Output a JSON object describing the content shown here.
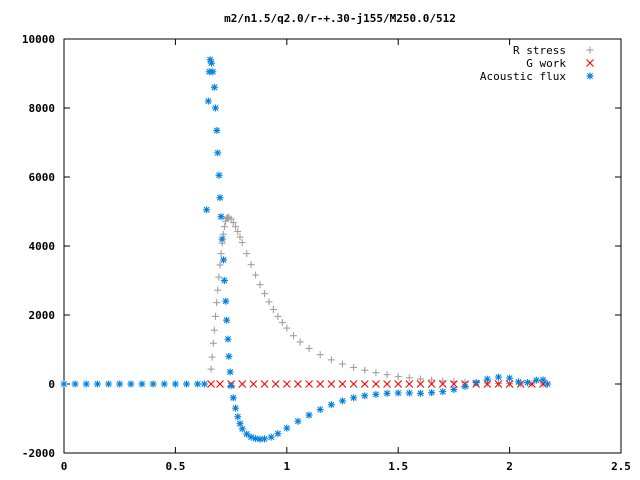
{
  "chart_data": {
    "type": "scatter",
    "title": "m2/n1.5/q2.0/r-+.30-j155/M250.0/512",
    "xlabel": "",
    "ylabel": "",
    "xlim": [
      0,
      2.5
    ],
    "ylim": [
      -2000,
      10000
    ],
    "x_ticks": [
      0,
      0.5,
      1,
      1.5,
      2,
      2.5
    ],
    "y_ticks": [
      -2000,
      0,
      2000,
      4000,
      6000,
      8000,
      10000
    ],
    "x_tick_labels": [
      "0",
      "0.5",
      "1",
      "1.5",
      "2",
      "2.5"
    ],
    "y_tick_labels": [
      "-2000",
      "0",
      "2000",
      "4000",
      "6000",
      "8000",
      "10000"
    ],
    "grid": false,
    "legend_position": "top-right",
    "series": [
      {
        "name": "R stress",
        "marker": "+",
        "color": "#a0a0a0",
        "points": [
          [
            0.66,
            430
          ],
          [
            0.665,
            780
          ],
          [
            0.67,
            1180
          ],
          [
            0.675,
            1560
          ],
          [
            0.68,
            1960
          ],
          [
            0.685,
            2360
          ],
          [
            0.69,
            2720
          ],
          [
            0.695,
            3100
          ],
          [
            0.7,
            3450
          ],
          [
            0.705,
            3780
          ],
          [
            0.71,
            4080
          ],
          [
            0.715,
            4340
          ],
          [
            0.72,
            4560
          ],
          [
            0.725,
            4720
          ],
          [
            0.73,
            4800
          ],
          [
            0.735,
            4830
          ],
          [
            0.74,
            4830
          ],
          [
            0.75,
            4780
          ],
          [
            0.76,
            4680
          ],
          [
            0.77,
            4560
          ],
          [
            0.78,
            4420
          ],
          [
            0.79,
            4260
          ],
          [
            0.8,
            4100
          ],
          [
            0.82,
            3780
          ],
          [
            0.84,
            3460
          ],
          [
            0.86,
            3160
          ],
          [
            0.88,
            2880
          ],
          [
            0.9,
            2620
          ],
          [
            0.92,
            2380
          ],
          [
            0.94,
            2160
          ],
          [
            0.96,
            1960
          ],
          [
            0.98,
            1780
          ],
          [
            1.0,
            1620
          ],
          [
            1.03,
            1400
          ],
          [
            1.06,
            1220
          ],
          [
            1.1,
            1030
          ],
          [
            1.15,
            850
          ],
          [
            1.2,
            700
          ],
          [
            1.25,
            580
          ],
          [
            1.3,
            480
          ],
          [
            1.35,
            400
          ],
          [
            1.4,
            330
          ],
          [
            1.45,
            270
          ],
          [
            1.5,
            220
          ],
          [
            1.55,
            180
          ],
          [
            1.6,
            145
          ],
          [
            1.65,
            115
          ],
          [
            1.7,
            90
          ],
          [
            1.75,
            70
          ],
          [
            1.8,
            50
          ],
          [
            1.85,
            35
          ],
          [
            1.9,
            25
          ],
          [
            1.95,
            15
          ],
          [
            2.0,
            10
          ],
          [
            2.05,
            5
          ],
          [
            2.1,
            3
          ],
          [
            2.15,
            1
          ]
        ]
      },
      {
        "name": "G work",
        "marker": "x",
        "color": "#ff0000",
        "points": [
          [
            0.66,
            0
          ],
          [
            0.7,
            0
          ],
          [
            0.75,
            0
          ],
          [
            0.8,
            0
          ],
          [
            0.85,
            0
          ],
          [
            0.9,
            0
          ],
          [
            0.95,
            0
          ],
          [
            1.0,
            0
          ],
          [
            1.05,
            0
          ],
          [
            1.1,
            0
          ],
          [
            1.15,
            0
          ],
          [
            1.2,
            0
          ],
          [
            1.25,
            0
          ],
          [
            1.3,
            0
          ],
          [
            1.35,
            0
          ],
          [
            1.4,
            0
          ],
          [
            1.45,
            0
          ],
          [
            1.5,
            0
          ],
          [
            1.55,
            0
          ],
          [
            1.6,
            0
          ],
          [
            1.65,
            0
          ],
          [
            1.7,
            0
          ],
          [
            1.75,
            0
          ],
          [
            1.8,
            0
          ],
          [
            1.85,
            0
          ],
          [
            1.9,
            0
          ],
          [
            1.95,
            0
          ],
          [
            2.0,
            0
          ],
          [
            2.05,
            0
          ],
          [
            2.1,
            0
          ],
          [
            2.15,
            0
          ]
        ]
      },
      {
        "name": "Acoustic flux",
        "marker": "*",
        "color": "#0080e0",
        "points": [
          [
            0,
            0
          ],
          [
            0.05,
            0
          ],
          [
            0.1,
            0
          ],
          [
            0.15,
            0
          ],
          [
            0.2,
            0
          ],
          [
            0.25,
            0
          ],
          [
            0.3,
            0
          ],
          [
            0.35,
            0
          ],
          [
            0.4,
            0
          ],
          [
            0.45,
            0
          ],
          [
            0.5,
            0
          ],
          [
            0.55,
            0
          ],
          [
            0.6,
            0
          ],
          [
            0.63,
            0
          ],
          [
            0.64,
            5050
          ],
          [
            0.648,
            8200
          ],
          [
            0.652,
            9050
          ],
          [
            0.656,
            9400
          ],
          [
            0.662,
            9300
          ],
          [
            0.668,
            9050
          ],
          [
            0.675,
            8600
          ],
          [
            0.68,
            8000
          ],
          [
            0.686,
            7350
          ],
          [
            0.69,
            6700
          ],
          [
            0.696,
            6050
          ],
          [
            0.7,
            5400
          ],
          [
            0.705,
            4850
          ],
          [
            0.71,
            4200
          ],
          [
            0.716,
            3600
          ],
          [
            0.72,
            3000
          ],
          [
            0.726,
            2400
          ],
          [
            0.73,
            1850
          ],
          [
            0.736,
            1300
          ],
          [
            0.74,
            800
          ],
          [
            0.746,
            350
          ],
          [
            0.75,
            -50
          ],
          [
            0.76,
            -400
          ],
          [
            0.77,
            -700
          ],
          [
            0.78,
            -950
          ],
          [
            0.79,
            -1150
          ],
          [
            0.8,
            -1300
          ],
          [
            0.82,
            -1450
          ],
          [
            0.84,
            -1540
          ],
          [
            0.86,
            -1580
          ],
          [
            0.88,
            -1600
          ],
          [
            0.9,
            -1590
          ],
          [
            0.93,
            -1540
          ],
          [
            0.96,
            -1440
          ],
          [
            1.0,
            -1280
          ],
          [
            1.05,
            -1080
          ],
          [
            1.1,
            -900
          ],
          [
            1.15,
            -740
          ],
          [
            1.2,
            -600
          ],
          [
            1.25,
            -490
          ],
          [
            1.3,
            -400
          ],
          [
            1.35,
            -340
          ],
          [
            1.4,
            -300
          ],
          [
            1.45,
            -270
          ],
          [
            1.5,
            -260
          ],
          [
            1.55,
            -260
          ],
          [
            1.6,
            -270
          ],
          [
            1.65,
            -250
          ],
          [
            1.7,
            -220
          ],
          [
            1.75,
            -160
          ],
          [
            1.8,
            -70
          ],
          [
            1.85,
            40
          ],
          [
            1.9,
            140
          ],
          [
            1.95,
            200
          ],
          [
            2.0,
            170
          ],
          [
            2.04,
            60
          ],
          [
            2.08,
            40
          ],
          [
            2.12,
            110
          ],
          [
            2.15,
            120
          ],
          [
            2.17,
            0
          ]
        ]
      }
    ]
  }
}
